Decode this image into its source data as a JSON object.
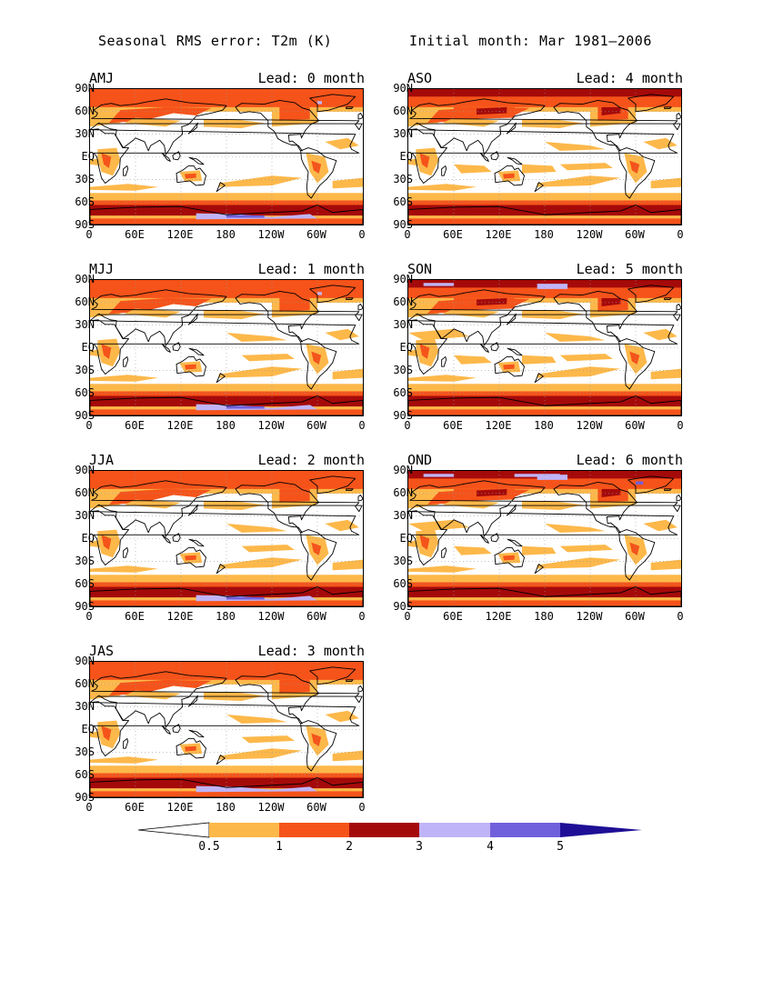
{
  "title_left": "Seasonal RMS error: T2m (K)",
  "title_right": "Initial month: Mar 1981–2006",
  "lat_labels": [
    "90N",
    "60N",
    "30N",
    "EQ",
    "30S",
    "60S",
    "90S"
  ],
  "lon_labels": [
    "0",
    "60E",
    "120E",
    "180",
    "120W",
    "60W",
    "0"
  ],
  "panels": [
    {
      "season": "AMJ",
      "lead": "Lead: 0 month",
      "lead_months": 0
    },
    {
      "season": "ASO",
      "lead": "Lead: 4 month",
      "lead_months": 4
    },
    {
      "season": "MJJ",
      "lead": "Lead: 1 month",
      "lead_months": 1
    },
    {
      "season": "SON",
      "lead": "Lead: 5 month",
      "lead_months": 5
    },
    {
      "season": "JJA",
      "lead": "Lead: 2 month",
      "lead_months": 2
    },
    {
      "season": "OND",
      "lead": "Lead: 6 month",
      "lead_months": 6
    },
    {
      "season": "JAS",
      "lead": "Lead: 3 month",
      "lead_months": 3
    }
  ],
  "colorbar": {
    "labels": [
      "0.5",
      "1",
      "2",
      "3",
      "4",
      "5"
    ],
    "colors": [
      "#ffffff",
      "#fdb84a",
      "#f5531a",
      "#a50a0a",
      "#c0b4f8",
      "#7060dc",
      "#1e0f96"
    ]
  }
}
